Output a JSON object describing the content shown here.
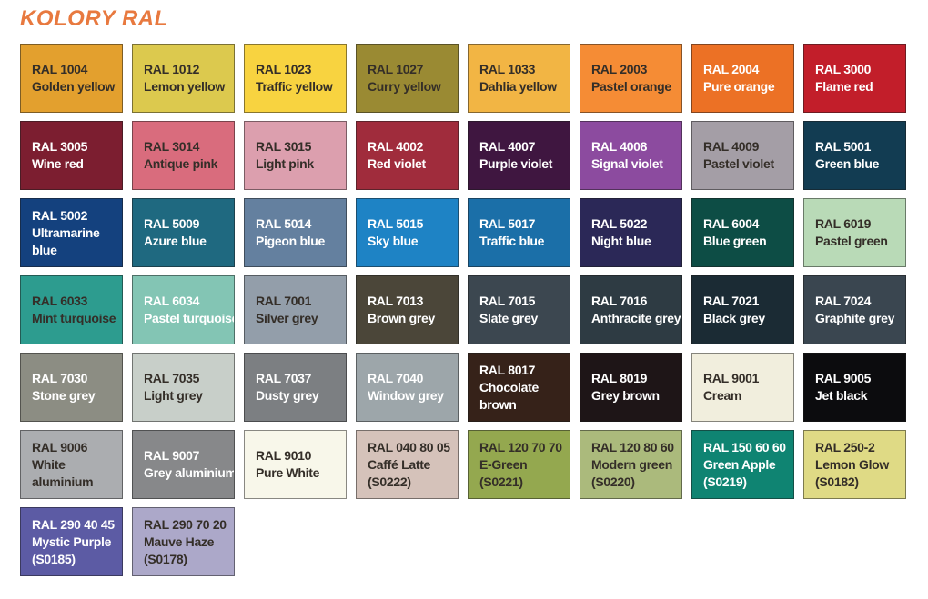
{
  "theme": {
    "background": "#FFFFFF",
    "title_color": "#E8793F",
    "dark_text": "#342E28",
    "light_text": "#FFFFFF",
    "swatch_border": "rgba(25,25,25,0.5)"
  },
  "chart_data": {
    "type": "table",
    "title": "KOLORY RAL",
    "columns": [
      "ral_code",
      "color_name",
      "supplier_code",
      "swatch_hex",
      "label_tone"
    ],
    "rows": [
      {
        "code": "RAL 1004",
        "name": "Golden yellow",
        "sub": "",
        "hex": "#E3A02E",
        "text": "dark"
      },
      {
        "code": "RAL 1012",
        "name": "Lemon yellow",
        "sub": "",
        "hex": "#DCC94E",
        "text": "dark"
      },
      {
        "code": "RAL 1023",
        "name": "Traffic yellow",
        "sub": "",
        "hex": "#F8D340",
        "text": "dark"
      },
      {
        "code": "RAL 1027",
        "name": "Curry yellow",
        "sub": "",
        "hex": "#9A8A33",
        "text": "dark"
      },
      {
        "code": "RAL 1033",
        "name": "Dahlia yellow",
        "sub": "",
        "hex": "#F2B544",
        "text": "dark"
      },
      {
        "code": "RAL 2003",
        "name": "Pastel orange",
        "sub": "",
        "hex": "#F58C35",
        "text": "dark"
      },
      {
        "code": "RAL 2004",
        "name": "Pure orange",
        "sub": "",
        "hex": "#EC7125",
        "text": "light"
      },
      {
        "code": "RAL 3000",
        "name": "Flame red",
        "sub": "",
        "hex": "#C21E2A",
        "text": "light"
      },
      {
        "code": "RAL 3005",
        "name": "Wine red",
        "sub": "",
        "hex": "#7C1E30",
        "text": "light"
      },
      {
        "code": "RAL 3014",
        "name": "Antique pink",
        "sub": "",
        "hex": "#D96C7D",
        "text": "dark"
      },
      {
        "code": "RAL 3015",
        "name": "Light pink",
        "sub": "",
        "hex": "#DC9FAE",
        "text": "dark"
      },
      {
        "code": "RAL 4002",
        "name": "Red violet",
        "sub": "",
        "hex": "#A02C3C",
        "text": "light"
      },
      {
        "code": "RAL 4007",
        "name": "Purple violet",
        "sub": "",
        "hex": "#3F1640",
        "text": "light"
      },
      {
        "code": "RAL 4008",
        "name": "Signal violet",
        "sub": "",
        "hex": "#8C4B9F",
        "text": "light"
      },
      {
        "code": "RAL 4009",
        "name": "Pastel violet",
        "sub": "",
        "hex": "#A49EA6",
        "text": "dark"
      },
      {
        "code": "RAL 5001",
        "name": "Green blue",
        "sub": "",
        "hex": "#123C52",
        "text": "light"
      },
      {
        "code": "RAL 5002",
        "name": "Ultramarine\nblue",
        "sub": "",
        "hex": "#14417E",
        "text": "light"
      },
      {
        "code": "RAL 5009",
        "name": "Azure blue",
        "sub": "",
        "hex": "#1F6980",
        "text": "light"
      },
      {
        "code": "RAL 5014",
        "name": "Pigeon blue",
        "sub": "",
        "hex": "#64809F",
        "text": "light"
      },
      {
        "code": "RAL 5015",
        "name": "Sky blue",
        "sub": "",
        "hex": "#1E83C5",
        "text": "light"
      },
      {
        "code": "RAL 5017",
        "name": "Traffic blue",
        "sub": "",
        "hex": "#1B6FA8",
        "text": "light"
      },
      {
        "code": "RAL 5022",
        "name": "Night blue",
        "sub": "",
        "hex": "#2B2857",
        "text": "light"
      },
      {
        "code": "RAL 6004",
        "name": "Blue green",
        "sub": "",
        "hex": "#0D4D45",
        "text": "light"
      },
      {
        "code": "RAL 6019",
        "name": "Pastel green",
        "sub": "",
        "hex": "#B9DAB7",
        "text": "dark"
      },
      {
        "code": "RAL 6033",
        "name": "Mint turquoise",
        "sub": "",
        "hex": "#2D9C8F",
        "text": "dark"
      },
      {
        "code": "RAL 6034",
        "name": "Pastel turquoise",
        "sub": "",
        "hex": "#83C5B4",
        "text": "light"
      },
      {
        "code": "RAL 7001",
        "name": "Silver grey",
        "sub": "",
        "hex": "#939EAA",
        "text": "dark"
      },
      {
        "code": "RAL 7013",
        "name": "Brown grey",
        "sub": "",
        "hex": "#4B4639",
        "text": "light"
      },
      {
        "code": "RAL 7015",
        "name": "Slate grey",
        "sub": "",
        "hex": "#3C4750",
        "text": "light"
      },
      {
        "code": "RAL 7016",
        "name": "Anthracite grey",
        "sub": "",
        "hex": "#2E3B43",
        "text": "light"
      },
      {
        "code": "RAL 7021",
        "name": "Black grey",
        "sub": "",
        "hex": "#1B2B34",
        "text": "light"
      },
      {
        "code": "RAL 7024",
        "name": "Graphite grey",
        "sub": "",
        "hex": "#3A4650",
        "text": "light"
      },
      {
        "code": "RAL 7030",
        "name": "Stone grey",
        "sub": "",
        "hex": "#8C8D83",
        "text": "light"
      },
      {
        "code": "RAL 7035",
        "name": "Light grey",
        "sub": "",
        "hex": "#C8CFC9",
        "text": "dark"
      },
      {
        "code": "RAL 7037",
        "name": "Dusty grey",
        "sub": "",
        "hex": "#7C7F82",
        "text": "light"
      },
      {
        "code": "RAL 7040",
        "name": "Window grey",
        "sub": "",
        "hex": "#9DA6AA",
        "text": "light"
      },
      {
        "code": "RAL 8017",
        "name": "Chocolate\nbrown",
        "sub": "",
        "hex": "#362219",
        "text": "light"
      },
      {
        "code": "RAL 8019",
        "name": "Grey brown",
        "sub": "",
        "hex": "#1E1517",
        "text": "light"
      },
      {
        "code": "RAL 9001",
        "name": "Cream",
        "sub": "",
        "hex": "#F1EEDD",
        "text": "dark"
      },
      {
        "code": "RAL 9005",
        "name": "Jet black",
        "sub": "",
        "hex": "#0C0C0E",
        "text": "light"
      },
      {
        "code": "RAL 9006",
        "name": "White\naluminium",
        "sub": "",
        "hex": "#ABADB0",
        "text": "dark"
      },
      {
        "code": "RAL 9007",
        "name": "Grey aluminium",
        "sub": "",
        "hex": "#87888A",
        "text": "light"
      },
      {
        "code": "RAL 9010",
        "name": "Pure White",
        "sub": "",
        "hex": "#F8F7EA",
        "text": "dark"
      },
      {
        "code": "RAL 040 80 05",
        "name": "Caffé Latte",
        "sub": "(S0222)",
        "hex": "#D5C2BA",
        "text": "dark"
      },
      {
        "code": "RAL 120 70 70",
        "name": "E-Green",
        "sub": "(S0221)",
        "hex": "#94A84F",
        "text": "dark"
      },
      {
        "code": "RAL 120 80 60",
        "name": "Modern green",
        "sub": "(S0220)",
        "hex": "#ABBA7C",
        "text": "dark"
      },
      {
        "code": "RAL 150 60 60",
        "name": "Green Apple",
        "sub": "(S0219)",
        "hex": "#0F8472",
        "text": "light"
      },
      {
        "code": "RAL 250-2",
        "name": "Lemon Glow",
        "sub": "(S0182)",
        "hex": "#DFDA85",
        "text": "dark"
      },
      {
        "code": "RAL 290 40 45",
        "name": "Mystic Purple",
        "sub": "(S0185)",
        "hex": "#5C5BA4",
        "text": "light"
      },
      {
        "code": "RAL 290 70 20",
        "name": "Mauve Haze",
        "sub": "(S0178)",
        "hex": "#ACA8C9",
        "text": "dark"
      }
    ]
  }
}
